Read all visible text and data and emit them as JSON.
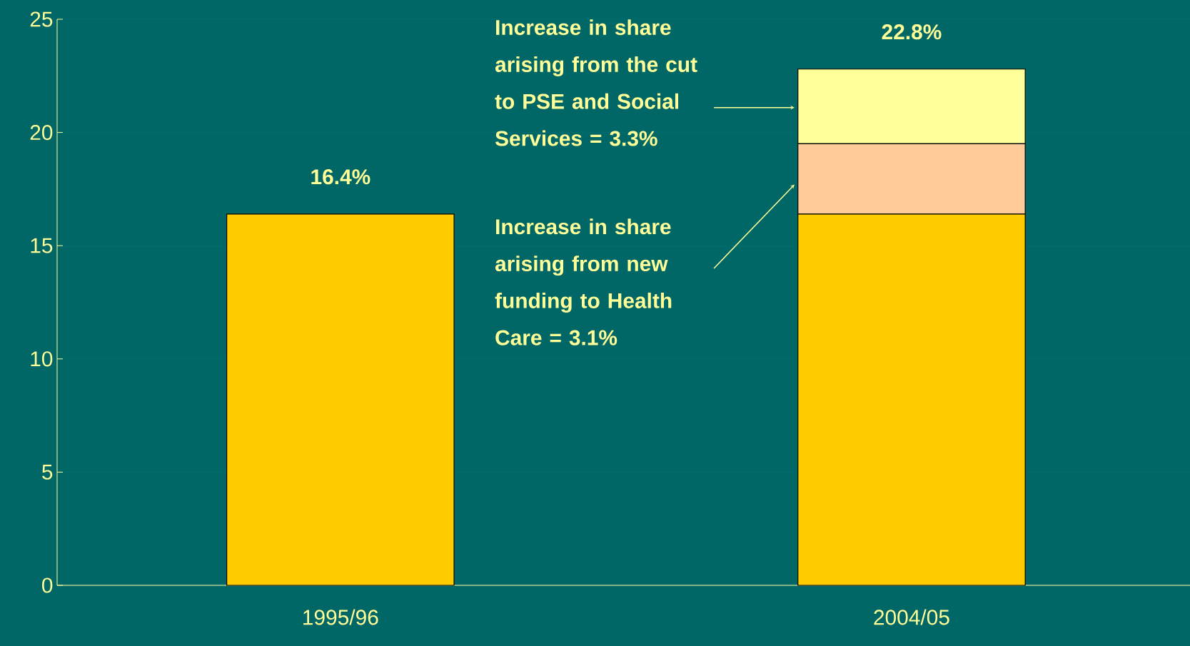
{
  "chart_data": {
    "type": "bar",
    "stacked": true,
    "categories": [
      "1995/96",
      "2004/05"
    ],
    "series": [
      {
        "color": "#ffcc00",
        "values": [
          16.4,
          16.4
        ]
      },
      {
        "color": "#ffcc99",
        "values": [
          null,
          3.1
        ]
      },
      {
        "color": "#ffff99",
        "values": [
          null,
          3.3
        ]
      }
    ],
    "totals": [
      "16.4%",
      "22.8%"
    ],
    "annotations": [
      "Increase in share arising from the cut to PSE and Social Services = 3.3%",
      "Increase in share arising from new funding to Health Care = 3.1%"
    ],
    "ylim": [
      0,
      25
    ],
    "yticks": [
      0,
      5,
      10,
      15,
      20,
      25
    ],
    "grid": "y"
  }
}
